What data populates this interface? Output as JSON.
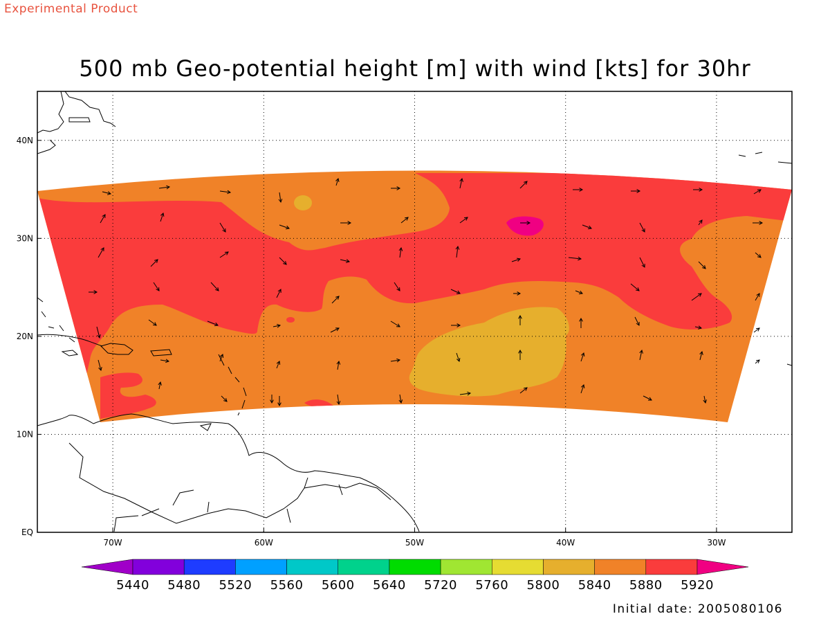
{
  "watermark": "Experimental Product",
  "title": "500 mb Geo-potential height [m] with wind [kts] for 30hr",
  "footer": "Initial date: 2005080106",
  "map": {
    "lon_range": [
      -75,
      -25
    ],
    "lat_range": [
      0,
      45
    ],
    "lon_ticks": [
      {
        "value": -70,
        "label": "70W"
      },
      {
        "value": -60,
        "label": "60W"
      },
      {
        "value": -50,
        "label": "50W"
      },
      {
        "value": -40,
        "label": "40W"
      },
      {
        "value": -30,
        "label": "30W"
      }
    ],
    "lat_ticks": [
      {
        "value": 0,
        "label": "EQ"
      },
      {
        "value": 10,
        "label": "10N"
      },
      {
        "value": 20,
        "label": "20N"
      },
      {
        "value": 30,
        "label": "30N"
      },
      {
        "value": 40,
        "label": "40N"
      }
    ],
    "grid": "dotted"
  },
  "colorbar": {
    "levels": [
      "5440",
      "5480",
      "5520",
      "5560",
      "5600",
      "5640",
      "5720",
      "5760",
      "5800",
      "5840",
      "5880",
      "5920"
    ],
    "colors": [
      "#a000c8",
      "#8200dc",
      "#1e3cff",
      "#00a0ff",
      "#00c8c8",
      "#00d28c",
      "#00dc00",
      "#a0e632",
      "#e6dc32",
      "#e6af2d",
      "#f08228",
      "#fa3c3c",
      "#f00082"
    ]
  },
  "field_colors": {
    "h5840": "#e6af2d",
    "h5880": "#f08228",
    "h5920": "#fa3c3c",
    "h5960": "#f00082"
  }
}
